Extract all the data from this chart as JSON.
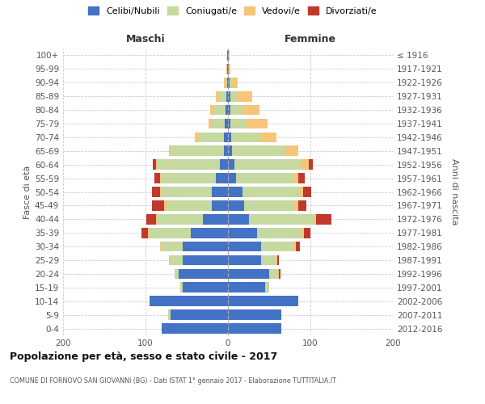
{
  "age_groups": [
    "0-4",
    "5-9",
    "10-14",
    "15-19",
    "20-24",
    "25-29",
    "30-34",
    "35-39",
    "40-44",
    "45-49",
    "50-54",
    "55-59",
    "60-64",
    "65-69",
    "70-74",
    "75-79",
    "80-84",
    "85-89",
    "90-94",
    "95-99",
    "100+"
  ],
  "birth_years": [
    "2012-2016",
    "2007-2011",
    "2002-2006",
    "1997-2001",
    "1992-1996",
    "1987-1991",
    "1982-1986",
    "1977-1981",
    "1972-1976",
    "1967-1971",
    "1962-1966",
    "1957-1961",
    "1952-1956",
    "1947-1951",
    "1942-1946",
    "1937-1941",
    "1932-1936",
    "1927-1931",
    "1922-1926",
    "1917-1921",
    "≤ 1916"
  ],
  "maschi_celibi": [
    80,
    70,
    95,
    55,
    60,
    55,
    55,
    45,
    30,
    20,
    20,
    15,
    10,
    5,
    5,
    4,
    3,
    2,
    1,
    1,
    1
  ],
  "maschi_coniugati": [
    0,
    3,
    0,
    3,
    5,
    15,
    25,
    50,
    55,
    55,
    60,
    65,
    75,
    65,
    30,
    16,
    14,
    8,
    2,
    0,
    0
  ],
  "maschi_vedovi": [
    0,
    0,
    0,
    0,
    0,
    2,
    2,
    2,
    2,
    2,
    2,
    2,
    2,
    2,
    5,
    4,
    5,
    5,
    2,
    1,
    0
  ],
  "maschi_divorziati": [
    0,
    0,
    0,
    0,
    0,
    0,
    0,
    8,
    12,
    15,
    10,
    7,
    4,
    0,
    0,
    0,
    0,
    0,
    0,
    0,
    0
  ],
  "femmine_celibi": [
    65,
    65,
    85,
    45,
    50,
    40,
    40,
    35,
    25,
    20,
    18,
    10,
    8,
    5,
    4,
    3,
    3,
    3,
    2,
    1,
    1
  ],
  "femmine_coniugati": [
    0,
    0,
    0,
    5,
    10,
    18,
    40,
    55,
    80,
    60,
    68,
    70,
    80,
    65,
    35,
    20,
    15,
    8,
    2,
    0,
    0
  ],
  "femmine_vedovi": [
    0,
    0,
    0,
    0,
    2,
    2,
    2,
    2,
    2,
    5,
    5,
    5,
    10,
    15,
    20,
    25,
    20,
    18,
    8,
    2,
    1
  ],
  "femmine_divorziati": [
    0,
    0,
    0,
    0,
    2,
    2,
    5,
    8,
    18,
    10,
    10,
    8,
    5,
    0,
    0,
    0,
    0,
    0,
    0,
    0,
    0
  ],
  "color_celibi": "#4472c4",
  "color_coniugati": "#c5d9a0",
  "color_vedovi": "#f5c57a",
  "color_divorziati": "#c0392b",
  "title": "Popolazione per età, sesso e stato civile - 2017",
  "subtitle": "COMUNE DI FORNOVO SAN GIOVANNI (BG) - Dati ISTAT 1° gennaio 2017 - Elaborazione TUTTITALIA.IT",
  "ylabel_left": "Fasce di età",
  "ylabel_right": "Anni di nascita",
  "xlabel_maschi": "Maschi",
  "xlabel_femmine": "Femmine",
  "xlim": 200,
  "background_color": "#ffffff",
  "grid_color": "#cccccc",
  "legend_labels": [
    "Celibi/Nubili",
    "Coniugati/e",
    "Vedovi/e",
    "Divorziati/e"
  ]
}
